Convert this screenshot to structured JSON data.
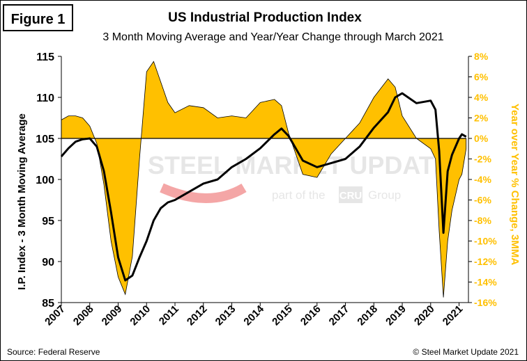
{
  "figure_label": "Figure 1",
  "source_note": "Source: Federal Reserve",
  "copyright_note": "© Steel Market Update 2021",
  "watermark": {
    "brand": "STEEL MARKET UPDATE",
    "tagline_prefix": "part of the",
    "tagline_logo": "CRU",
    "tagline_suffix": "Group"
  },
  "colors": {
    "area_fill": "#ffc000",
    "area_stroke": "#000000",
    "line": "#000000",
    "right_axis_text": "#ffc000",
    "watermark_red": "#e83c3c",
    "watermark_grey": "#c8c8c8"
  },
  "chart_data": {
    "type": "line",
    "title": "US Industrial Production Index",
    "subtitle": "3 Month Moving Average and Year/Year Change through March 2021",
    "xlabel": "",
    "ylabel": "I.P. Index - 3 Month Moving Average",
    "y2label": "Year over Year % Change, 3MMA",
    "x_ticks": [
      "2007",
      "2008",
      "2009",
      "2010",
      "2011",
      "2012",
      "2013",
      "2014",
      "2015",
      "2016",
      "2017",
      "2018",
      "2019",
      "2020",
      "2021"
    ],
    "ylim": [
      85,
      115
    ],
    "y_ticks": [
      "85",
      "90",
      "95",
      "100",
      "105",
      "110",
      "115"
    ],
    "y2lim": [
      -16,
      8
    ],
    "y2_ticks": [
      "8%",
      "6%",
      "4%",
      "2%",
      "0%",
      "-2%",
      "-4%",
      "-6%",
      "-8%",
      "-10%",
      "-12%",
      "-14%",
      "-16%"
    ],
    "grid": false,
    "series": [
      {
        "name": "I.P. Index - 3 Month Moving Average",
        "axis": "left",
        "type": "line",
        "x": [
          2007.0,
          2007.25,
          2007.5,
          2007.75,
          2008.0,
          2008.25,
          2008.5,
          2008.75,
          2009.0,
          2009.25,
          2009.5,
          2009.75,
          2010.0,
          2010.25,
          2010.5,
          2010.75,
          2011.0,
          2011.5,
          2012.0,
          2012.5,
          2013.0,
          2013.5,
          2014.0,
          2014.5,
          2014.75,
          2015.0,
          2015.5,
          2016.0,
          2016.5,
          2017.0,
          2017.5,
          2018.0,
          2018.5,
          2018.75,
          2019.0,
          2019.5,
          2020.0,
          2020.17,
          2020.3,
          2020.45,
          2020.6,
          2020.75,
          2021.0,
          2021.1,
          2021.25
        ],
        "values": [
          102.8,
          103.8,
          104.6,
          104.9,
          105.0,
          104.0,
          101.0,
          96.0,
          90.5,
          87.7,
          88.3,
          90.5,
          92.5,
          95.0,
          96.5,
          97.2,
          97.5,
          98.5,
          99.5,
          100.0,
          101.5,
          102.5,
          103.8,
          105.5,
          106.2,
          105.3,
          102.3,
          101.5,
          102.0,
          102.5,
          104.0,
          106.3,
          108.2,
          110.0,
          110.5,
          109.3,
          109.6,
          108.5,
          103.5,
          93.5,
          101.0,
          103.0,
          105.0,
          105.5,
          105.2
        ]
      },
      {
        "name": "Year over Year % Change, 3MMA",
        "axis": "right",
        "type": "area",
        "x": [
          2007.0,
          2007.25,
          2007.5,
          2007.75,
          2008.0,
          2008.25,
          2008.5,
          2008.75,
          2009.0,
          2009.25,
          2009.5,
          2009.75,
          2010.0,
          2010.25,
          2010.5,
          2010.75,
          2011.0,
          2011.5,
          2012.0,
          2012.5,
          2013.0,
          2013.5,
          2014.0,
          2014.5,
          2014.75,
          2015.0,
          2015.5,
          2016.0,
          2016.5,
          2017.0,
          2017.5,
          2018.0,
          2018.5,
          2018.75,
          2019.0,
          2019.5,
          2020.0,
          2020.17,
          2020.3,
          2020.45,
          2020.6,
          2020.75,
          2021.0,
          2021.1,
          2021.25
        ],
        "values": [
          1.8,
          2.2,
          2.2,
          2.0,
          1.2,
          -0.5,
          -4.5,
          -10.0,
          -13.5,
          -15.2,
          -11.5,
          -2.0,
          6.5,
          7.5,
          5.5,
          3.5,
          2.5,
          3.2,
          3.0,
          2.0,
          2.2,
          2.0,
          3.5,
          3.8,
          3.2,
          0.5,
          -3.5,
          -3.8,
          -1.5,
          0.0,
          1.5,
          4.0,
          5.8,
          5.0,
          2.2,
          0.0,
          -1.0,
          -2.0,
          -9.0,
          -15.5,
          -10.0,
          -7.0,
          -4.0,
          -3.5,
          -1.0
        ]
      }
    ]
  }
}
